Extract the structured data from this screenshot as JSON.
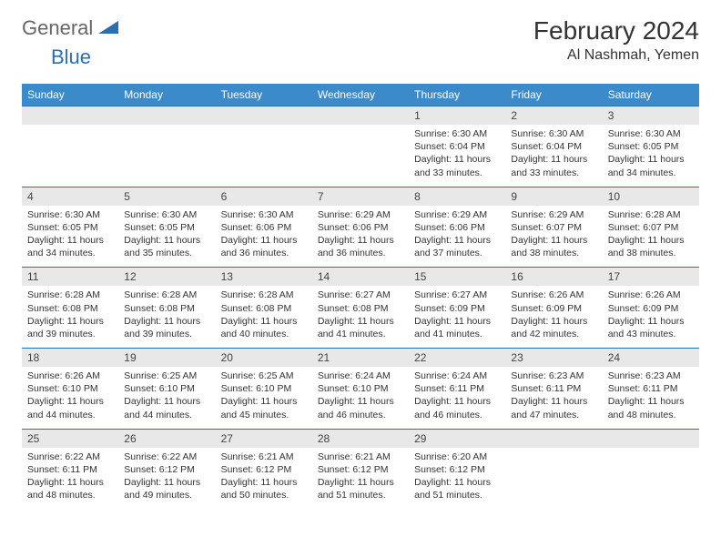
{
  "brand": {
    "part1": "General",
    "part2": "Blue"
  },
  "title": "February 2024",
  "location": "Al Nashmah, Yemen",
  "colors": {
    "header_bg": "#3b8bca",
    "header_text": "#ffffff",
    "daynum_bg": "#e8e8e8",
    "border_top": "#2a6fb5",
    "logo_gray": "#666666",
    "logo_blue": "#2a6fb5",
    "text": "#333333",
    "background": "#ffffff"
  },
  "weekdays": [
    "Sunday",
    "Monday",
    "Tuesday",
    "Wednesday",
    "Thursday",
    "Friday",
    "Saturday"
  ],
  "weeks": [
    {
      "nums": [
        "",
        "",
        "",
        "",
        "1",
        "2",
        "3"
      ],
      "cells": [
        null,
        null,
        null,
        null,
        {
          "sunrise": "6:30 AM",
          "sunset": "6:04 PM",
          "daylight": "11 hours and 33 minutes."
        },
        {
          "sunrise": "6:30 AM",
          "sunset": "6:04 PM",
          "daylight": "11 hours and 33 minutes."
        },
        {
          "sunrise": "6:30 AM",
          "sunset": "6:05 PM",
          "daylight": "11 hours and 34 minutes."
        }
      ]
    },
    {
      "nums": [
        "4",
        "5",
        "6",
        "7",
        "8",
        "9",
        "10"
      ],
      "cells": [
        {
          "sunrise": "6:30 AM",
          "sunset": "6:05 PM",
          "daylight": "11 hours and 34 minutes."
        },
        {
          "sunrise": "6:30 AM",
          "sunset": "6:05 PM",
          "daylight": "11 hours and 35 minutes."
        },
        {
          "sunrise": "6:30 AM",
          "sunset": "6:06 PM",
          "daylight": "11 hours and 36 minutes."
        },
        {
          "sunrise": "6:29 AM",
          "sunset": "6:06 PM",
          "daylight": "11 hours and 36 minutes."
        },
        {
          "sunrise": "6:29 AM",
          "sunset": "6:06 PM",
          "daylight": "11 hours and 37 minutes."
        },
        {
          "sunrise": "6:29 AM",
          "sunset": "6:07 PM",
          "daylight": "11 hours and 38 minutes."
        },
        {
          "sunrise": "6:28 AM",
          "sunset": "6:07 PM",
          "daylight": "11 hours and 38 minutes."
        }
      ]
    },
    {
      "nums": [
        "11",
        "12",
        "13",
        "14",
        "15",
        "16",
        "17"
      ],
      "cells": [
        {
          "sunrise": "6:28 AM",
          "sunset": "6:08 PM",
          "daylight": "11 hours and 39 minutes."
        },
        {
          "sunrise": "6:28 AM",
          "sunset": "6:08 PM",
          "daylight": "11 hours and 39 minutes."
        },
        {
          "sunrise": "6:28 AM",
          "sunset": "6:08 PM",
          "daylight": "11 hours and 40 minutes."
        },
        {
          "sunrise": "6:27 AM",
          "sunset": "6:08 PM",
          "daylight": "11 hours and 41 minutes."
        },
        {
          "sunrise": "6:27 AM",
          "sunset": "6:09 PM",
          "daylight": "11 hours and 41 minutes."
        },
        {
          "sunrise": "6:26 AM",
          "sunset": "6:09 PM",
          "daylight": "11 hours and 42 minutes."
        },
        {
          "sunrise": "6:26 AM",
          "sunset": "6:09 PM",
          "daylight": "11 hours and 43 minutes."
        }
      ]
    },
    {
      "nums": [
        "18",
        "19",
        "20",
        "21",
        "22",
        "23",
        "24"
      ],
      "cells": [
        {
          "sunrise": "6:26 AM",
          "sunset": "6:10 PM",
          "daylight": "11 hours and 44 minutes."
        },
        {
          "sunrise": "6:25 AM",
          "sunset": "6:10 PM",
          "daylight": "11 hours and 44 minutes."
        },
        {
          "sunrise": "6:25 AM",
          "sunset": "6:10 PM",
          "daylight": "11 hours and 45 minutes."
        },
        {
          "sunrise": "6:24 AM",
          "sunset": "6:10 PM",
          "daylight": "11 hours and 46 minutes."
        },
        {
          "sunrise": "6:24 AM",
          "sunset": "6:11 PM",
          "daylight": "11 hours and 46 minutes."
        },
        {
          "sunrise": "6:23 AM",
          "sunset": "6:11 PM",
          "daylight": "11 hours and 47 minutes."
        },
        {
          "sunrise": "6:23 AM",
          "sunset": "6:11 PM",
          "daylight": "11 hours and 48 minutes."
        }
      ]
    },
    {
      "nums": [
        "25",
        "26",
        "27",
        "28",
        "29",
        "",
        ""
      ],
      "cells": [
        {
          "sunrise": "6:22 AM",
          "sunset": "6:11 PM",
          "daylight": "11 hours and 48 minutes."
        },
        {
          "sunrise": "6:22 AM",
          "sunset": "6:12 PM",
          "daylight": "11 hours and 49 minutes."
        },
        {
          "sunrise": "6:21 AM",
          "sunset": "6:12 PM",
          "daylight": "11 hours and 50 minutes."
        },
        {
          "sunrise": "6:21 AM",
          "sunset": "6:12 PM",
          "daylight": "11 hours and 51 minutes."
        },
        {
          "sunrise": "6:20 AM",
          "sunset": "6:12 PM",
          "daylight": "11 hours and 51 minutes."
        },
        null,
        null
      ]
    }
  ],
  "labels": {
    "sunrise": "Sunrise: ",
    "sunset": "Sunset: ",
    "daylight": "Daylight: "
  }
}
